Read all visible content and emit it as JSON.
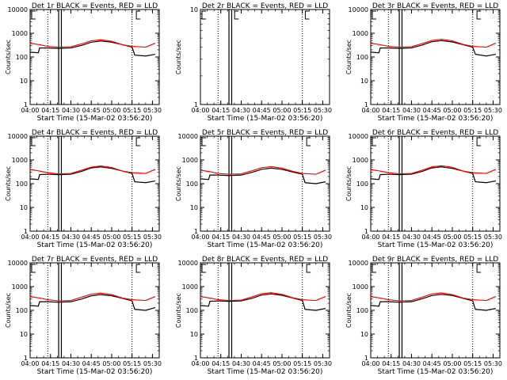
{
  "chart_data": [
    {
      "type": "line",
      "title": "Det 1r BLACK = Events, RED = LLD",
      "xlabel": "Start Time (15-Mar-02 03:56:20)",
      "ylabel": "Counts/sec",
      "yscale": "log",
      "ylim": [
        1,
        10000
      ],
      "ytick_labels": [
        "1",
        "10",
        "100",
        "1000",
        "10000"
      ],
      "xlim": [
        "04:00",
        "05:35"
      ],
      "xtick_labels": [
        "04:00",
        "04:15",
        "04:30",
        "04:45",
        "05:00",
        "05:15",
        "05:30"
      ],
      "dotted_lines": [
        "04:13",
        "05:15"
      ],
      "solid_lines": [
        "04:21",
        "04:23"
      ],
      "markers": [
        "04:00",
        "05:17"
      ],
      "series": [
        {
          "color": "#000000",
          "x": [
            "04:00",
            "04:06",
            "04:07",
            "04:13",
            "04:21",
            "04:30",
            "04:38",
            "04:45",
            "04:52",
            "05:00",
            "05:08",
            "05:15",
            "05:17",
            "05:25",
            "05:32"
          ],
          "y": [
            160,
            150,
            240,
            240,
            230,
            240,
            310,
            420,
            470,
            420,
            330,
            260,
            120,
            110,
            130
          ]
        },
        {
          "color": "#ff0000",
          "x": [
            "04:00",
            "04:07",
            "04:13",
            "04:21",
            "04:30",
            "04:38",
            "04:45",
            "04:52",
            "05:00",
            "05:08",
            "05:15",
            "05:25",
            "05:32"
          ],
          "y": [
            380,
            330,
            280,
            260,
            270,
            360,
            480,
            530,
            460,
            330,
            280,
            260,
            380
          ]
        }
      ]
    },
    {
      "type": "line",
      "title": "Det 2r BLACK = Events, RED = LLD",
      "xlabel": "Start Time (15-Mar-02 03:56:20)",
      "ylabel": "Counts/sec",
      "yscale": "log",
      "ylim": [
        1,
        10
      ],
      "ytick_labels": [
        "1",
        "10"
      ],
      "xlim": [
        "04:00",
        "05:35"
      ],
      "xtick_labels": [
        "04:00",
        "04:15",
        "04:30",
        "04:45",
        "05:00",
        "05:15",
        "05:30"
      ],
      "dotted_lines": [
        "04:13",
        "05:15"
      ],
      "solid_lines": [
        "04:21",
        "04:23"
      ],
      "markers": [
        "04:00",
        "04:24",
        "05:16"
      ],
      "series": []
    },
    {
      "type": "line",
      "title": "Det 3r BLACK = Events, RED = LLD",
      "xlabel": "Start Time (15-Mar-02 03:56:20)",
      "ylabel": "Counts/sec",
      "yscale": "log",
      "ylim": [
        1,
        10000
      ],
      "ytick_labels": [
        "1",
        "10",
        "100",
        "1000",
        "10000"
      ],
      "xlim": [
        "04:00",
        "05:35"
      ],
      "xtick_labels": [
        "04:00",
        "04:15",
        "04:30",
        "04:45",
        "05:00",
        "05:15",
        "05:30"
      ],
      "dotted_lines": [
        "04:13",
        "05:15"
      ],
      "solid_lines": [
        "04:21",
        "04:23"
      ],
      "markers": [
        "04:00",
        "05:17"
      ],
      "series": [
        {
          "color": "#000000",
          "x": [
            "04:00",
            "04:06",
            "04:07",
            "04:13",
            "04:21",
            "04:30",
            "04:38",
            "04:45",
            "04:52",
            "05:00",
            "05:08",
            "05:15",
            "05:17",
            "05:25",
            "05:32"
          ],
          "y": [
            160,
            150,
            240,
            240,
            230,
            240,
            320,
            440,
            490,
            430,
            330,
            260,
            130,
            110,
            130
          ]
        },
        {
          "color": "#ff0000",
          "x": [
            "04:00",
            "04:07",
            "04:13",
            "04:21",
            "04:30",
            "04:38",
            "04:45",
            "04:52",
            "05:00",
            "05:08",
            "05:15",
            "05:25",
            "05:32"
          ],
          "y": [
            380,
            330,
            280,
            260,
            270,
            370,
            500,
            560,
            480,
            340,
            280,
            260,
            380
          ]
        }
      ]
    },
    {
      "type": "line",
      "title": "Det 4r BLACK = Events, RED = LLD",
      "xlabel": "Start Time (15-Mar-02 03:56:20)",
      "ylabel": "Counts/sec",
      "yscale": "log",
      "ylim": [
        1,
        10000
      ],
      "ytick_labels": [
        "1",
        "10",
        "100",
        "1000",
        "10000"
      ],
      "xlim": [
        "04:00",
        "05:35"
      ],
      "xtick_labels": [
        "04:00",
        "04:15",
        "04:30",
        "04:45",
        "05:00",
        "05:15",
        "05:30"
      ],
      "dotted_lines": [
        "04:13",
        "05:15"
      ],
      "solid_lines": [
        "04:21",
        "04:23"
      ],
      "markers": [
        "04:00",
        "05:17"
      ],
      "series": [
        {
          "color": "#000000",
          "x": [
            "04:00",
            "04:06",
            "04:07",
            "04:13",
            "04:21",
            "04:30",
            "04:38",
            "04:45",
            "04:52",
            "05:00",
            "05:08",
            "05:15",
            "05:17",
            "05:25",
            "05:32"
          ],
          "y": [
            160,
            150,
            240,
            250,
            240,
            250,
            330,
            460,
            510,
            440,
            340,
            270,
            120,
            110,
            130
          ]
        },
        {
          "color": "#ff0000",
          "x": [
            "04:00",
            "04:07",
            "04:13",
            "04:21",
            "04:30",
            "04:38",
            "04:45",
            "04:52",
            "05:00",
            "05:08",
            "05:15",
            "05:25",
            "05:32"
          ],
          "y": [
            400,
            340,
            290,
            260,
            270,
            370,
            500,
            560,
            480,
            340,
            290,
            270,
            400
          ]
        }
      ]
    },
    {
      "type": "line",
      "title": "Det 5r BLACK = Events, RED = LLD",
      "xlabel": "Start Time (15-Mar-02 03:56:20)",
      "ylabel": "Counts/sec",
      "yscale": "log",
      "ylim": [
        1,
        10000
      ],
      "ytick_labels": [
        "1",
        "10",
        "100",
        "1000",
        "10000"
      ],
      "xlim": [
        "04:00",
        "05:35"
      ],
      "xtick_labels": [
        "04:00",
        "04:15",
        "04:30",
        "04:45",
        "05:00",
        "05:15",
        "05:30"
      ],
      "dotted_lines": [
        "04:13",
        "05:15"
      ],
      "solid_lines": [
        "04:21",
        "04:23"
      ],
      "markers": [
        "04:00",
        "05:17"
      ],
      "series": [
        {
          "color": "#000000",
          "x": [
            "04:00",
            "04:06",
            "04:07",
            "04:13",
            "04:21",
            "04:30",
            "04:38",
            "04:45",
            "04:52",
            "05:00",
            "05:08",
            "05:15",
            "05:17",
            "05:25",
            "05:32"
          ],
          "y": [
            160,
            150,
            230,
            230,
            220,
            230,
            300,
            400,
            450,
            400,
            310,
            250,
            110,
            100,
            120
          ]
        },
        {
          "color": "#ff0000",
          "x": [
            "04:00",
            "04:07",
            "04:13",
            "04:21",
            "04:30",
            "04:38",
            "04:45",
            "04:52",
            "05:00",
            "05:08",
            "05:15",
            "05:25",
            "05:32"
          ],
          "y": [
            370,
            320,
            270,
            250,
            260,
            350,
            470,
            520,
            450,
            330,
            270,
            250,
            370
          ]
        }
      ]
    },
    {
      "type": "line",
      "title": "Det 6r BLACK = Events, RED = LLD",
      "xlabel": "Start Time (15-Mar-02 03:56:20)",
      "ylabel": "Counts/sec",
      "yscale": "log",
      "ylim": [
        1,
        10000
      ],
      "ytick_labels": [
        "1",
        "10",
        "100",
        "1000",
        "10000"
      ],
      "xlim": [
        "04:00",
        "05:35"
      ],
      "xtick_labels": [
        "04:00",
        "04:15",
        "04:30",
        "04:45",
        "05:00",
        "05:15",
        "05:30"
      ],
      "dotted_lines": [
        "04:13",
        "05:15"
      ],
      "solid_lines": [
        "04:21",
        "04:23"
      ],
      "markers": [
        "04:00",
        "05:17"
      ],
      "series": [
        {
          "color": "#000000",
          "x": [
            "04:00",
            "04:06",
            "04:07",
            "04:13",
            "04:21",
            "04:30",
            "04:38",
            "04:45",
            "04:52",
            "05:00",
            "05:08",
            "05:15",
            "05:17",
            "05:25",
            "05:32"
          ],
          "y": [
            160,
            150,
            240,
            250,
            240,
            250,
            330,
            460,
            510,
            440,
            340,
            270,
            120,
            110,
            130
          ]
        },
        {
          "color": "#ff0000",
          "x": [
            "04:00",
            "04:07",
            "04:13",
            "04:21",
            "04:30",
            "04:38",
            "04:45",
            "04:52",
            "05:00",
            "05:08",
            "05:15",
            "05:25",
            "05:32"
          ],
          "y": [
            390,
            340,
            290,
            260,
            270,
            370,
            510,
            570,
            490,
            340,
            290,
            270,
            400
          ]
        }
      ]
    },
    {
      "type": "line",
      "title": "Det 7r BLACK = Events, RED = LLD",
      "xlabel": "Start Time (15-Mar-02 03:56:20)",
      "ylabel": "Counts/sec",
      "yscale": "log",
      "ylim": [
        1,
        10000
      ],
      "ytick_labels": [
        "1",
        "10",
        "100",
        "1000",
        "10000"
      ],
      "xlim": [
        "04:00",
        "05:35"
      ],
      "xtick_labels": [
        "04:00",
        "04:15",
        "04:30",
        "04:45",
        "05:00",
        "05:15",
        "05:30"
      ],
      "dotted_lines": [
        "04:13",
        "05:15"
      ],
      "solid_lines": [
        "04:21",
        "04:23"
      ],
      "markers": [
        "04:00",
        "05:17"
      ],
      "series": [
        {
          "color": "#000000",
          "x": [
            "04:00",
            "04:06",
            "04:07",
            "04:13",
            "04:21",
            "04:30",
            "04:38",
            "04:45",
            "04:52",
            "05:00",
            "05:08",
            "05:15",
            "05:17",
            "05:25",
            "05:32"
          ],
          "y": [
            160,
            150,
            230,
            230,
            220,
            230,
            300,
            410,
            460,
            410,
            320,
            250,
            110,
            100,
            130
          ]
        },
        {
          "color": "#ff0000",
          "x": [
            "04:00",
            "04:07",
            "04:13",
            "04:21",
            "04:30",
            "04:38",
            "04:45",
            "04:52",
            "05:00",
            "05:08",
            "05:15",
            "05:25",
            "05:32"
          ],
          "y": [
            380,
            330,
            280,
            250,
            260,
            360,
            480,
            530,
            460,
            330,
            280,
            260,
            380
          ]
        }
      ]
    },
    {
      "type": "line",
      "title": "Det 8r BLACK = Events, RED = LLD",
      "xlabel": "Start Time (15-Mar-02 03:56:20)",
      "ylabel": "Counts/sec",
      "yscale": "log",
      "ylim": [
        1,
        10000
      ],
      "ytick_labels": [
        "1",
        "10",
        "100",
        "1000",
        "10000"
      ],
      "xlim": [
        "04:00",
        "05:35"
      ],
      "xtick_labels": [
        "04:00",
        "04:15",
        "04:30",
        "04:45",
        "05:00",
        "05:15",
        "05:30"
      ],
      "dotted_lines": [
        "04:13",
        "05:15"
      ],
      "solid_lines": [
        "04:21",
        "04:23"
      ],
      "markers": [
        "04:00",
        "05:17"
      ],
      "series": [
        {
          "color": "#000000",
          "x": [
            "04:00",
            "04:06",
            "04:07",
            "04:13",
            "04:21",
            "04:30",
            "04:38",
            "04:45",
            "04:52",
            "05:00",
            "05:08",
            "05:15",
            "05:17",
            "05:25",
            "05:32"
          ],
          "y": [
            160,
            150,
            240,
            250,
            240,
            250,
            320,
            440,
            490,
            430,
            330,
            260,
            110,
            100,
            120
          ]
        },
        {
          "color": "#ff0000",
          "x": [
            "04:00",
            "04:07",
            "04:13",
            "04:21",
            "04:30",
            "04:38",
            "04:45",
            "04:52",
            "05:00",
            "05:08",
            "05:15",
            "05:25",
            "05:32"
          ],
          "y": [
            380,
            330,
            280,
            260,
            270,
            370,
            500,
            550,
            470,
            340,
            280,
            260,
            380
          ]
        }
      ]
    },
    {
      "type": "line",
      "title": "Det 9r BLACK = Events, RED = LLD",
      "xlabel": "Start Time (15-Mar-02 03:56:20)",
      "ylabel": "Counts/sec",
      "yscale": "log",
      "ylim": [
        1,
        10000
      ],
      "ytick_labels": [
        "1",
        "10",
        "100",
        "1000",
        "10000"
      ],
      "xlim": [
        "04:00",
        "05:35"
      ],
      "xtick_labels": [
        "04:00",
        "04:15",
        "04:30",
        "04:45",
        "05:00",
        "05:15",
        "05:30"
      ],
      "dotted_lines": [
        "04:13",
        "05:15"
      ],
      "solid_lines": [
        "04:21",
        "04:23"
      ],
      "markers": [
        "04:00",
        "05:17"
      ],
      "series": [
        {
          "color": "#000000",
          "x": [
            "04:00",
            "04:06",
            "04:07",
            "04:13",
            "04:21",
            "04:30",
            "04:38",
            "04:45",
            "04:52",
            "05:00",
            "05:08",
            "05:15",
            "05:17",
            "05:25",
            "05:32"
          ],
          "y": [
            160,
            150,
            230,
            230,
            220,
            230,
            310,
            420,
            470,
            420,
            320,
            250,
            110,
            100,
            120
          ]
        },
        {
          "color": "#ff0000",
          "x": [
            "04:00",
            "04:07",
            "04:13",
            "04:21",
            "04:30",
            "04:38",
            "04:45",
            "04:52",
            "05:00",
            "05:08",
            "05:15",
            "05:25",
            "05:32"
          ],
          "y": [
            380,
            330,
            280,
            250,
            260,
            360,
            490,
            540,
            460,
            330,
            280,
            260,
            380
          ]
        }
      ]
    }
  ]
}
